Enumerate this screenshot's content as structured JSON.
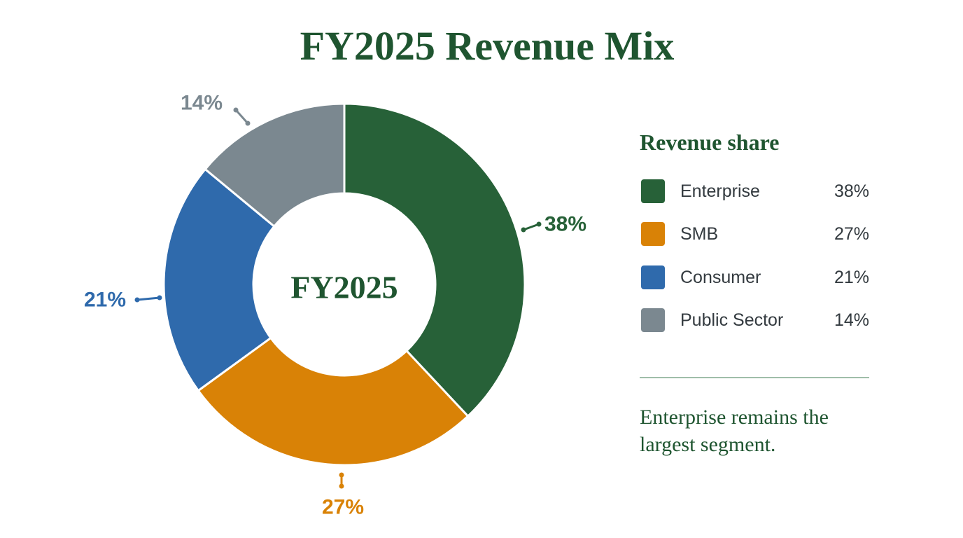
{
  "chart_data": {
    "type": "pie",
    "title": "FY2025 Revenue Mix",
    "center_label": "FY2025",
    "categories": [
      "Enterprise",
      "SMB",
      "Consumer",
      "Public Sector"
    ],
    "values": [
      38,
      27,
      21,
      14
    ],
    "value_labels": [
      "38%",
      "27%",
      "21%",
      "14%"
    ],
    "colors": [
      "#276138",
      "#d98206",
      "#2f6aac",
      "#7b8890"
    ],
    "legend": {
      "title": "Revenue share",
      "placement": "right"
    },
    "annotation": "Enterprise remains the largest segment."
  },
  "theme": {
    "text_color": "#1f5530",
    "divider_color": "#9fbea9"
  }
}
